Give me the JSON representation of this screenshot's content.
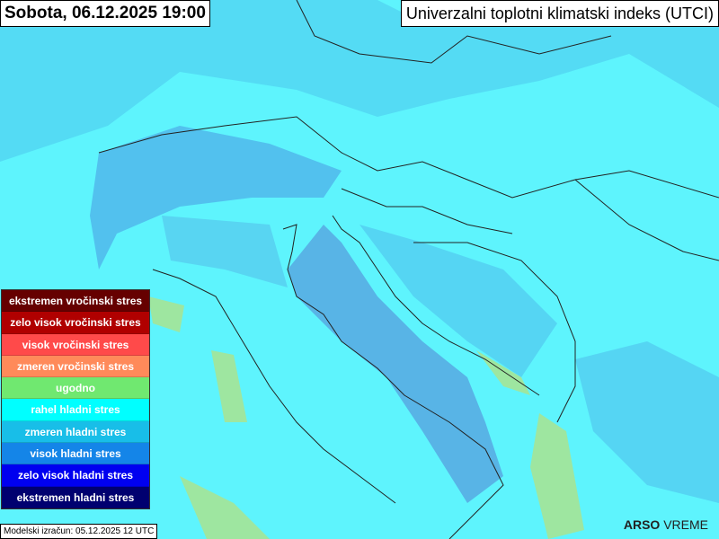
{
  "header": {
    "date_time": "Sobota, 06.12.2025 19:00",
    "title": "Univerzalni toplotni klimatski indeks (UTCI)"
  },
  "legend": [
    {
      "label": "ekstremen vročinski stres",
      "color": "#660000"
    },
    {
      "label": "zelo visok vročinski stres",
      "color": "#b00000"
    },
    {
      "label": "visok vročinski stres",
      "color": "#ff4a4a"
    },
    {
      "label": "zmeren vročinski stres",
      "color": "#ff8a5a"
    },
    {
      "label": "ugodno",
      "color": "#70e870"
    },
    {
      "label": "rahel hladni stres",
      "color": "#00ffff"
    },
    {
      "label": "zmeren hladni stres",
      "color": "#18bee8"
    },
    {
      "label": "visok hladni stres",
      "color": "#1485e8"
    },
    {
      "label": "zelo visok hladni stres",
      "color": "#0000f0"
    },
    {
      "label": "ekstremen hladni stres",
      "color": "#000070"
    }
  ],
  "footer": {
    "model_run": "Modelski izračun: 05.12.2025 12 UTC"
  },
  "logo": {
    "brand": "ARSO",
    "product": "VREME"
  }
}
